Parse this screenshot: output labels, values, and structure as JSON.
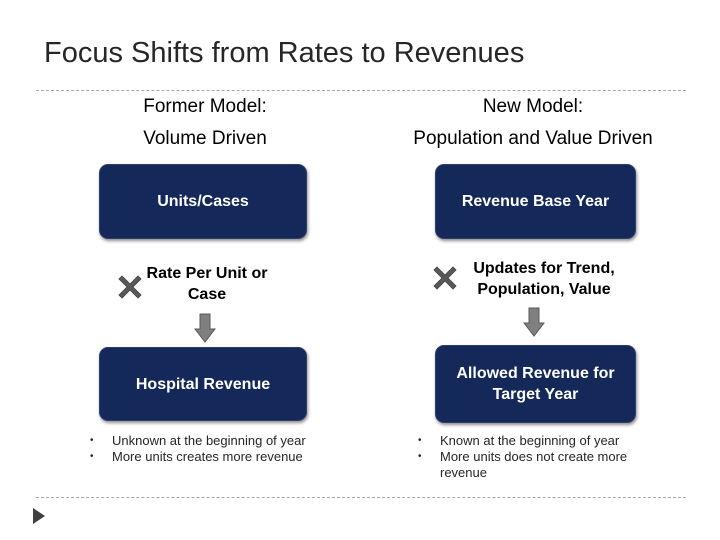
{
  "title": "Focus Shifts from Rates to Revenues",
  "left": {
    "heading_line1": "Former Model:",
    "heading_line2": "Volume Driven",
    "box_top": "Units/Cases",
    "step": "Rate Per Unit or Case",
    "box_bottom": "Hospital Revenue",
    "bullets": [
      "Unknown at the beginning of year",
      "More units creates more revenue"
    ]
  },
  "right": {
    "heading_line1": "New Model:",
    "heading_line2": "Population and Value Driven",
    "box_top": "Revenue Base Year",
    "step": "Updates for Trend, Population, Value",
    "box_bottom": "Allowed Revenue for Target Year",
    "bullets": [
      "Known at the beginning of year",
      "More units does not create more revenue"
    ]
  },
  "icons": {
    "multiply": "multiply-icon",
    "arrow": "down-arrow-icon",
    "nav": "play-triangle-icon"
  },
  "colors": {
    "box_fill": "#14285a",
    "icon_gray": "#595959",
    "arrow_gray": "#7f7f7f"
  }
}
